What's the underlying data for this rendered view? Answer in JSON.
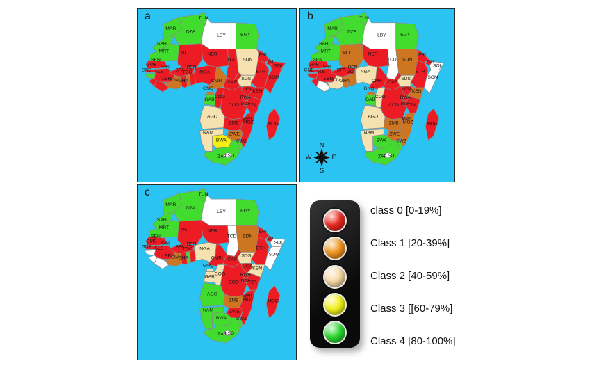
{
  "map_background": "#2BC3F2",
  "class_colors": {
    "0": "#EC1B24",
    "1": "#CE7522",
    "2": "#F6E2B0",
    "3": "#F4F014",
    "4": "#41DC2E",
    "na": "#FFFFFF"
  },
  "panels": [
    {
      "id": "a",
      "label": "a",
      "countries": {
        "MAR": "4",
        "SAH": "4",
        "DZA": "4",
        "TUN": "4",
        "LBY": "na",
        "EGY": "4",
        "MRT": "4",
        "MLI": "0",
        "NER": "0",
        "TCD": "0",
        "SDN": "2",
        "ERI": "0",
        "ETH": "0",
        "SDS": "2",
        "SOM": "0",
        "SOL": "0",
        "DJI": "0",
        "SEN": "0",
        "GMB": "0",
        "GNB": "4",
        "GIN": "0",
        "SLE": "0",
        "LBR": "0",
        "CIV": "1",
        "GHA": "0",
        "TGO": "1",
        "BEN": "0",
        "BFA": "0",
        "NGA": "0",
        "CMR": "1",
        "CAF": "0",
        "COD": "0",
        "UGA": "0",
        "KEN": "0",
        "TZA": "0",
        "GNQ": "1",
        "GAB": "4",
        "COG": "0",
        "RWA": "0",
        "BDI": "0",
        "AGO": "2",
        "ZMB": "0",
        "MWI": "0",
        "MOZ": "0",
        "ZWE": "1",
        "NAM": "2",
        "BWA": "3",
        "ZAF": "4",
        "SWZ": "4",
        "LSO": "na",
        "MDG": "0"
      }
    },
    {
      "id": "b",
      "label": "b",
      "countries": {
        "MAR": "4",
        "SAH": "4",
        "DZA": "4",
        "TUN": "4",
        "LBY": "na",
        "EGY": "4",
        "MRT": "4",
        "MLI": "1",
        "NER": "0",
        "TCD": "na",
        "SDN": "1",
        "ERI": "0",
        "ETH": "0",
        "SDS": "2",
        "SOM": "na",
        "SOL": "na",
        "DJI": "0",
        "SEN": "0",
        "GMB": "0",
        "GNB": "0",
        "GIN": "0",
        "SLE": "0",
        "LBR": "na",
        "CIV": "2",
        "GHA": "1",
        "TGO": "1",
        "BEN": "1",
        "BFA": "0",
        "NGA": "2",
        "CMR": "0",
        "CAF": "0",
        "COD": "0",
        "UGA": "0",
        "KEN": "1",
        "TZA": "0",
        "GNQ": "1",
        "GAB": "4",
        "COG": "2",
        "RWA": "0",
        "BDI": "0",
        "AGO": "2",
        "ZMB": "1",
        "MWI": "0",
        "MOZ": "1",
        "ZWE": "1",
        "NAM": "2",
        "BWA": "4",
        "ZAF": "4",
        "SWZ": "4",
        "LSO": "na",
        "MDG": "0"
      }
    },
    {
      "id": "c",
      "label": "c",
      "countries": {
        "MAR": "4",
        "SAH": "4",
        "DZA": "4",
        "TUN": "4",
        "LBY": "na",
        "EGY": "4",
        "MRT": "4",
        "MLI": "0",
        "NER": "0",
        "TCD": "na",
        "SDN": "1",
        "ERI": "0",
        "ETH": "0",
        "SDS": "2",
        "SOM": "na",
        "SOL": "na",
        "DJI": "0",
        "SEN": "0",
        "GMB": "0",
        "GNB": "na",
        "GIN": "0",
        "SLE": "na",
        "LBR": "na",
        "CIV": "1",
        "GHA": "0",
        "TGO": "4",
        "BEN": "0",
        "BFA": "0",
        "NGA": "2",
        "CMR": "0",
        "CAF": "0",
        "COD": "0",
        "UGA": "0",
        "KEN": "2",
        "TZA": "0",
        "GNQ": "2",
        "GAB": "2",
        "COG": "2",
        "RWA": "0",
        "BDI": "0",
        "AGO": "4",
        "ZMB": "1",
        "MWI": "0",
        "MOZ": "0",
        "ZWE": "0",
        "NAM": "4",
        "BWA": "4",
        "ZAF": "4",
        "SWZ": "4",
        "LSO": "na",
        "MDG": "0"
      }
    }
  ],
  "compass": {
    "n": "N",
    "e": "E",
    "s": "S",
    "w": "W"
  },
  "legend": {
    "items": [
      {
        "class": "0",
        "label": "class 0 [0-19%]",
        "color": "#E8281E"
      },
      {
        "class": "1",
        "label": "Class 1 [20-39%]",
        "color": "#F0941E"
      },
      {
        "class": "2",
        "label": "Class 2 [40-59%]",
        "color": "#F7D9A4"
      },
      {
        "class": "3",
        "label": "Class 3 [[60-79%]",
        "color": "#F1F01A"
      },
      {
        "class": "4",
        "label": "Class 4 [80-100%]",
        "color": "#2BD62E"
      }
    ]
  }
}
